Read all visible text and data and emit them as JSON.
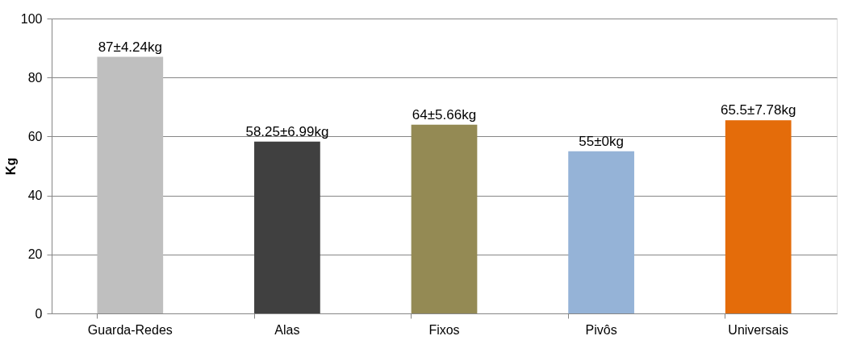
{
  "chart_data": {
    "type": "bar",
    "ylabel": "Kg",
    "categories": [
      "Guarda-Redes",
      "Alas",
      "Fixos",
      "Pivôs",
      "Universais"
    ],
    "values": [
      87,
      58.25,
      64,
      55,
      65.5
    ],
    "colors": [
      "#bfbfbf",
      "#404040",
      "#948a54",
      "#95b3d7",
      "#e46c0a"
    ],
    "value_labels": [
      "87±4.24kg",
      "58.25±6.99kg",
      "64±5.66kg",
      "55±0kg",
      "65.5±7.78kg"
    ],
    "ylim": [
      0,
      100
    ],
    "yticks": [
      0,
      20,
      40,
      60,
      80,
      100
    ],
    "grid": "y"
  }
}
